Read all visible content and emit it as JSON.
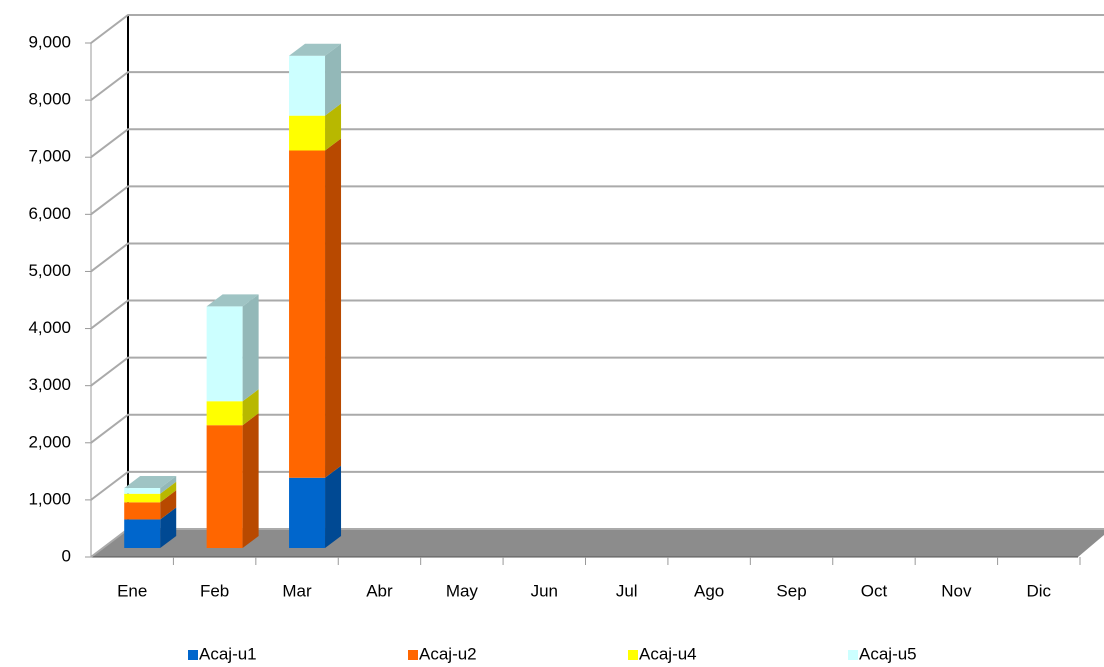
{
  "chart_data": {
    "type": "bar3d",
    "stacked": true,
    "categories": [
      "Ene",
      "Feb",
      "Mar",
      "Abr",
      "May",
      "Jun",
      "Jul",
      "Ago",
      "Sep",
      "Oct",
      "Nov",
      "Dic"
    ],
    "series": [
      {
        "name": "Acaj-u1",
        "color": "#0066cc",
        "values": [
          500,
          0,
          1230,
          null,
          null,
          null,
          null,
          null,
          null,
          null,
          null,
          null
        ]
      },
      {
        "name": "Acaj-u2",
        "color": "#ff6600",
        "values": [
          300,
          2150,
          5730,
          null,
          null,
          null,
          null,
          null,
          null,
          null,
          null,
          null
        ]
      },
      {
        "name": "Acaj-u4",
        "color": "#ffff00",
        "values": [
          150,
          420,
          610,
          null,
          null,
          null,
          null,
          null,
          null,
          null,
          null,
          null
        ]
      },
      {
        "name": "Acaj-u5",
        "color": "#ccffff",
        "values": [
          100,
          1660,
          1050,
          null,
          null,
          null,
          null,
          null,
          null,
          null,
          null,
          null
        ]
      }
    ],
    "ylim": [
      0,
      9000
    ],
    "yticks": [
      0,
      {
        "value": 1000,
        "label": "1,000"
      },
      {
        "value": 2000,
        "label": "2,000"
      },
      {
        "value": 3000,
        "label": "3,000"
      },
      {
        "value": 4000,
        "label": "4,000"
      },
      {
        "value": 5000,
        "label": "5,000"
      },
      {
        "value": 6000,
        "label": "6,000"
      },
      {
        "value": 7000,
        "label": "7,000"
      },
      {
        "value": 8000,
        "label": "8,000"
      },
      {
        "value": 9000,
        "label": "9,000"
      }
    ],
    "grid": true,
    "legend": "bottom"
  }
}
